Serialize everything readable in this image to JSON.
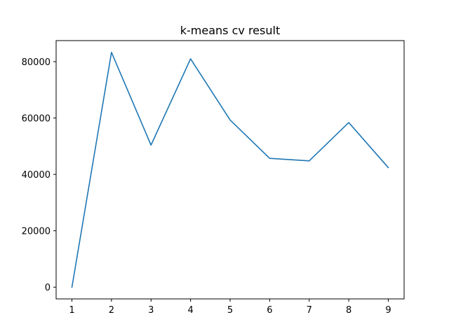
{
  "chart_data": {
    "type": "line",
    "title": "k-means cv result",
    "xlabel": "",
    "ylabel": "",
    "x": [
      1,
      2,
      3,
      4,
      5,
      6,
      7,
      8,
      9
    ],
    "series": [
      {
        "values": [
          0,
          83300,
          50400,
          81000,
          59300,
          45700,
          44800,
          58400,
          42400
        ],
        "color": "#1f77b4"
      }
    ],
    "xticks": [
      1,
      2,
      3,
      4,
      5,
      6,
      7,
      8,
      9
    ],
    "yticks": [
      0,
      20000,
      40000,
      60000,
      80000
    ],
    "xlim": [
      0.6,
      9.4
    ],
    "ylim": [
      -4165,
      87465
    ],
    "grid": false,
    "legend": "none"
  }
}
